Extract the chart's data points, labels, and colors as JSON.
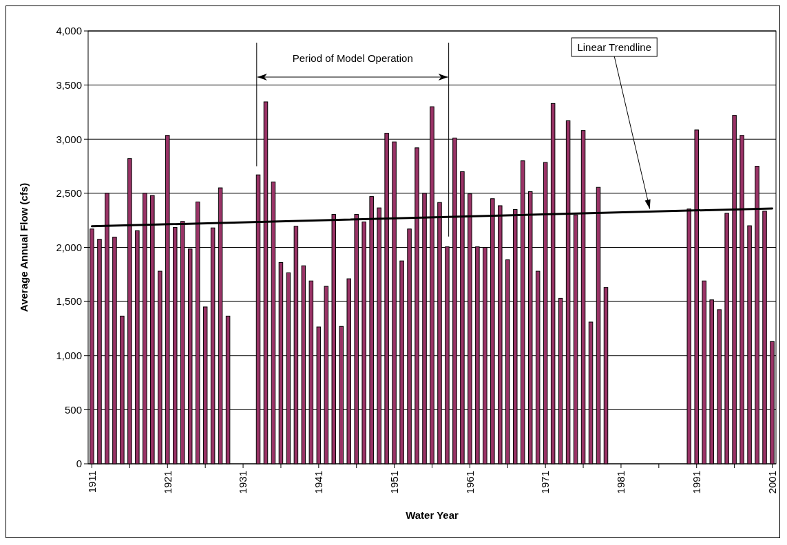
{
  "chart_data": {
    "type": "bar",
    "xlabel": "Water Year",
    "ylabel": "Average Annual Flow (cfs)",
    "x": [
      1911,
      1912,
      1913,
      1914,
      1915,
      1916,
      1917,
      1918,
      1919,
      1920,
      1921,
      1922,
      1923,
      1924,
      1925,
      1926,
      1927,
      1928,
      1929,
      1933,
      1934,
      1935,
      1936,
      1937,
      1938,
      1939,
      1940,
      1941,
      1942,
      1943,
      1944,
      1945,
      1946,
      1947,
      1948,
      1949,
      1950,
      1951,
      1952,
      1953,
      1954,
      1955,
      1956,
      1957,
      1958,
      1959,
      1960,
      1961,
      1962,
      1963,
      1964,
      1965,
      1966,
      1967,
      1968,
      1969,
      1970,
      1971,
      1972,
      1973,
      1974,
      1975,
      1976,
      1977,
      1978,
      1979,
      1990,
      1991,
      1992,
      1993,
      1994,
      1995,
      1996,
      1997,
      1998,
      1999,
      2000,
      2001
    ],
    "series": [
      {
        "color": "#993366",
        "values": [
          2170,
          2075,
          2500,
          2095,
          1365,
          2820,
          2155,
          2500,
          2480,
          1780,
          3035,
          2185,
          2240,
          1985,
          2420,
          1450,
          2180,
          2550,
          1365,
          2670,
          3345,
          2605,
          1860,
          1765,
          2195,
          1830,
          1690,
          1265,
          1640,
          2305,
          1270,
          1710,
          2305,
          2235,
          2470,
          2365,
          3055,
          2975,
          1875,
          2170,
          2920,
          2500,
          3300,
          2415,
          2005,
          3010,
          2700,
          2495,
          2005,
          2000,
          2450,
          2385,
          1885,
          2350,
          2800,
          2515,
          1780,
          2785,
          3330,
          1530,
          3170,
          2300,
          3080,
          1310,
          2555,
          1630,
          2355,
          3085,
          1690,
          1515,
          1425,
          2315,
          3220,
          3035,
          2200,
          2750,
          2335,
          1130
        ]
      },
      {
        "type": "line",
        "name": "Linear Trendline",
        "color": "#000000",
        "x": [
          1911,
          2001
        ],
        "values": [
          2195,
          2360
        ]
      }
    ],
    "xlim": [
      1910.5,
      2001.5
    ],
    "xticks": [
      1911,
      {
        "value": 1916,
        "label": null
      },
      1921,
      {
        "value": 1926,
        "label": null
      },
      1931,
      {
        "value": 1936,
        "label": null
      },
      1941,
      {
        "value": 1946,
        "label": null
      },
      1951,
      {
        "value": 1956,
        "label": null
      },
      1961,
      {
        "value": 1966,
        "label": null
      },
      1971,
      {
        "value": 1976,
        "label": null
      },
      1981,
      {
        "value": 1986,
        "label": null
      },
      1991,
      {
        "value": 1996,
        "label": null
      },
      2001
    ],
    "ylim": [
      0,
      4000
    ],
    "yticks": [
      0,
      500,
      {
        "value": 1000,
        "label": "1,000"
      },
      {
        "value": 1500,
        "label": "1,500"
      },
      {
        "value": 2000,
        "label": "2,000"
      },
      {
        "value": 2500,
        "label": "2,500"
      },
      {
        "value": 3000,
        "label": "3,000"
      },
      {
        "value": 3500,
        "label": "3,500"
      },
      {
        "value": 4000,
        "label": "4,000"
      }
    ],
    "grid": "y",
    "ref_lines": [
      {
        "axis": "x",
        "value": 1932.8
      },
      {
        "axis": "x",
        "value": 1958.2
      }
    ],
    "annotations": [
      "Period of Model Operation"
    ]
  }
}
